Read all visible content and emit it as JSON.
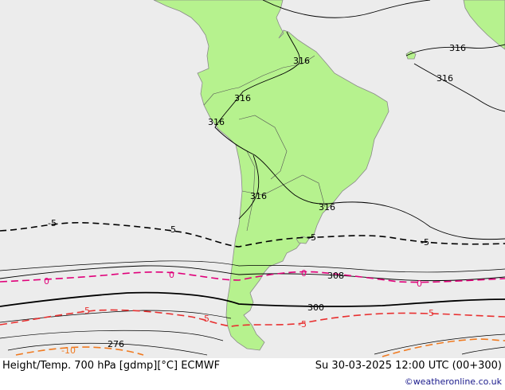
{
  "footer": {
    "title": "Height/Temp. 700 hPa [gdmp][°C] ECMWF",
    "valid_time": "Su 30-03-2025 12:00 UTC (00+300)",
    "credit": "©weatheronline.co.uk"
  },
  "colors": {
    "ocean": "#ececec",
    "land": "#b6f28e",
    "height_contour": "#000000",
    "isotherm_0": "#e0007a",
    "isotherm_neg5": "#e83030",
    "isotherm_neg10": "#f07a20",
    "isotherm_neg5_dashed_black": "#000000"
  },
  "contours": {
    "height_labels": [
      "316",
      "316",
      "316",
      "316",
      "316",
      "316",
      "316",
      "308",
      "300",
      "276"
    ],
    "temp_labels": [
      "-5",
      "-5",
      "-5",
      "-5",
      "0",
      "0",
      "0",
      "0",
      "-5",
      "-5",
      "-5",
      "-5",
      "-10"
    ]
  }
}
